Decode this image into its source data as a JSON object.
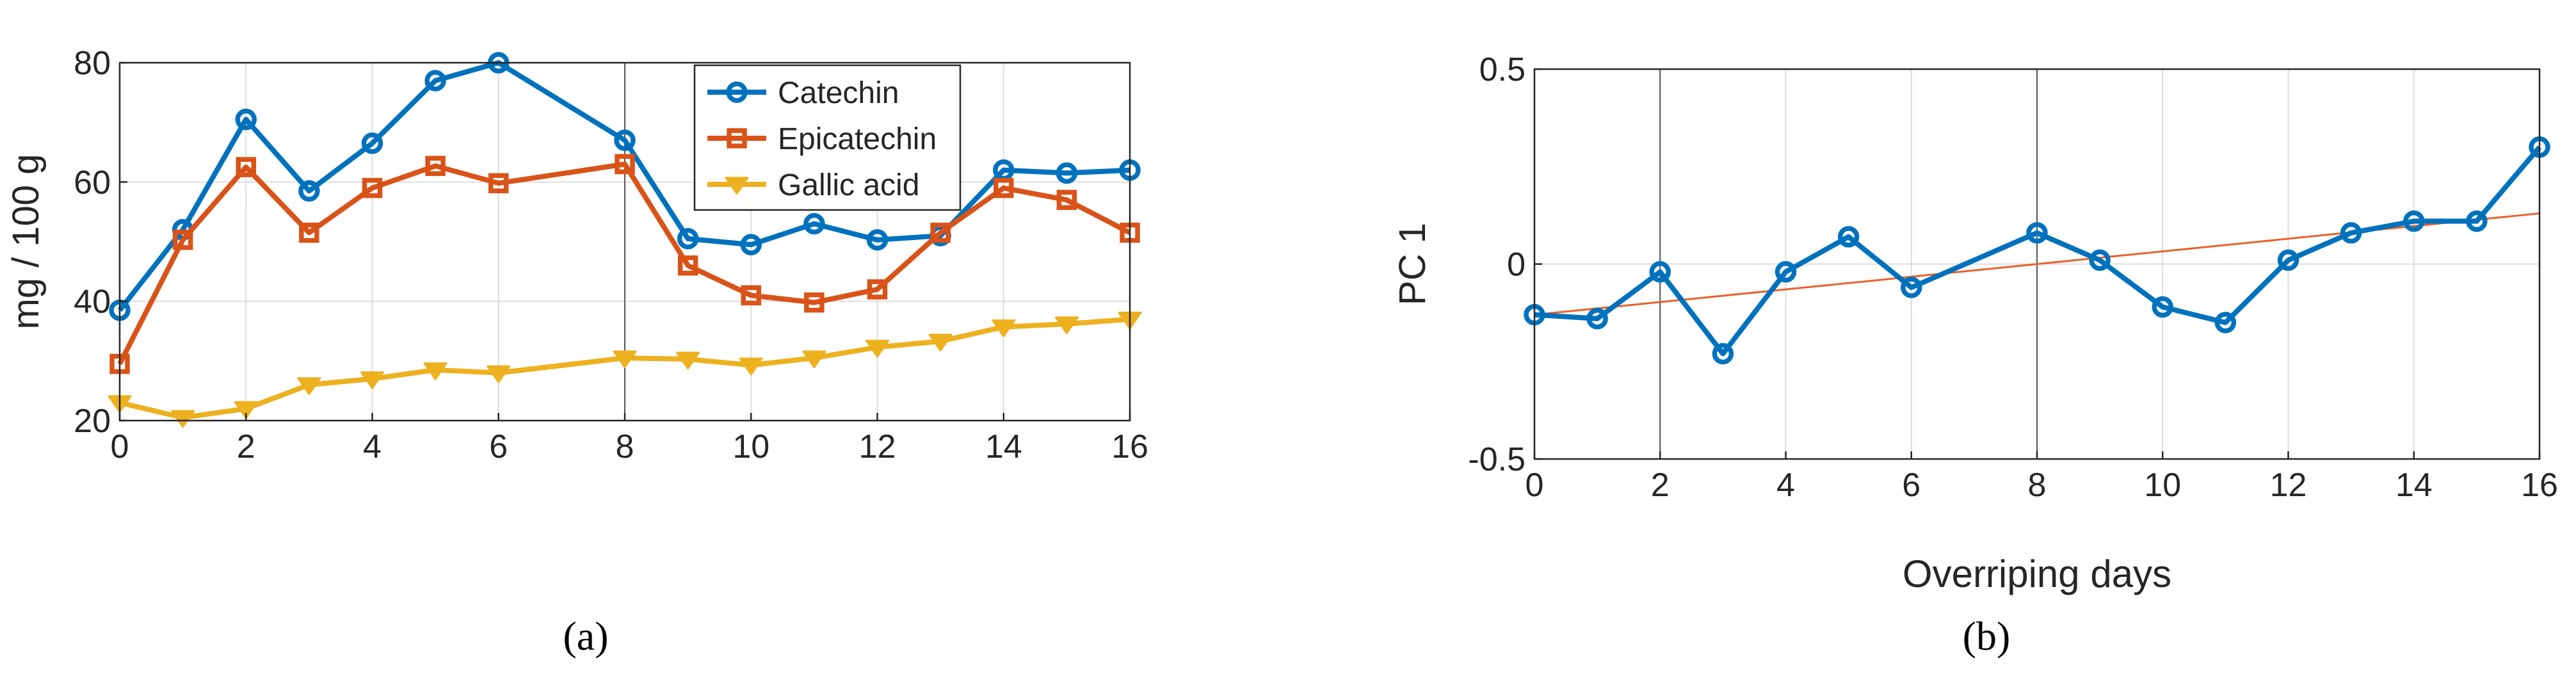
{
  "chart_data": [
    {
      "type": "line",
      "panel_label": "(a)",
      "xlabel": "",
      "ylabel": "mg / 100 g",
      "xlim": [
        0,
        16
      ],
      "ylim": [
        20,
        80
      ],
      "xticks": [
        0,
        2,
        4,
        6,
        8,
        10,
        12,
        14,
        16
      ],
      "yticks": [
        20,
        40,
        60,
        80
      ],
      "grid": true,
      "legend_position": "top-center",
      "x": [
        0,
        1,
        2,
        3,
        4,
        5,
        6,
        8,
        9,
        10,
        11,
        12,
        13,
        14,
        15,
        16
      ],
      "series": [
        {
          "name": "Catechin",
          "color": "#0072BD",
          "marker": "circle",
          "values": [
            38.5,
            52,
            70.5,
            58.5,
            66.5,
            77,
            80,
            67,
            50.5,
            49.5,
            53,
            50.3,
            51,
            62,
            61.5,
            62
          ]
        },
        {
          "name": "Epicatechin",
          "color": "#D95319",
          "marker": "square",
          "values": [
            29.5,
            50.3,
            62.5,
            51.5,
            59,
            62.7,
            59.8,
            63,
            46,
            41,
            39.8,
            42,
            51.5,
            59,
            57,
            51.5
          ]
        },
        {
          "name": "Gallic acid",
          "color": "#EDB120",
          "marker": "triangle-down",
          "values": [
            23,
            20.5,
            22,
            26,
            27,
            28.5,
            28,
            30.5,
            30.3,
            29.3,
            30.5,
            32.3,
            33.3,
            35.7,
            36.2,
            37
          ]
        }
      ]
    },
    {
      "type": "line",
      "panel_label": "(b)",
      "xlabel": "Overriping days",
      "ylabel": "PC 1",
      "xlim": [
        0,
        16
      ],
      "ylim": [
        -0.5,
        0.5
      ],
      "xticks": [
        0,
        2,
        4,
        6,
        8,
        10,
        12,
        14,
        16
      ],
      "yticks": [
        -0.5,
        0,
        0.5
      ],
      "ytick_labels": [
        "-0.5",
        "0",
        "0.5"
      ],
      "grid": true,
      "x": [
        0,
        1,
        2,
        3,
        4,
        5,
        6,
        8,
        9,
        10,
        11,
        12,
        13,
        14,
        15,
        16
      ],
      "series": [
        {
          "color": "#0072BD",
          "marker": "circle",
          "values": [
            -0.13,
            -0.14,
            -0.02,
            -0.23,
            -0.02,
            0.07,
            -0.06,
            0.08,
            0.01,
            -0.11,
            -0.15,
            0.01,
            0.08,
            0.11,
            0.11,
            0.3
          ]
        }
      ],
      "trend_line": {
        "color": "#E8612C",
        "x": [
          0,
          16
        ],
        "values": [
          -0.13,
          0.13
        ]
      }
    }
  ]
}
